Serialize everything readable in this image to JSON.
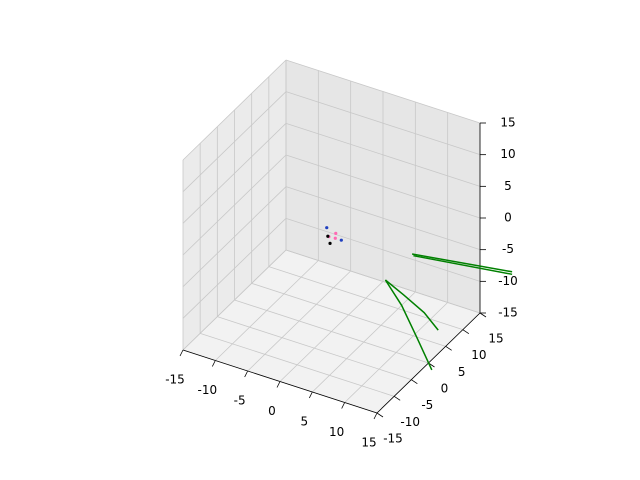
{
  "chart_data": {
    "type": "line3d",
    "xlim": [
      -15,
      15
    ],
    "ylim": [
      -15,
      15
    ],
    "zlim": [
      -15,
      15
    ],
    "xticks": [
      -15,
      -10,
      -5,
      0,
      5,
      10,
      15
    ],
    "yticks": [
      -15,
      -10,
      -5,
      0,
      5,
      10,
      15
    ],
    "zticks": [
      -15,
      -10,
      -5,
      0,
      5,
      10,
      15
    ],
    "grid": true,
    "series": [
      {
        "color": "#008000",
        "x": [
          0.1,
          4,
          8.5,
          12.2
        ],
        "y": [
          15.5,
          13.5,
          11,
          8.1
        ],
        "z": [
          -15,
          -15,
          -15,
          -15
        ]
      },
      {
        "color": "#008000",
        "x": [
          0.1,
          5,
          10.5,
          16.2
        ],
        "y": [
          15.5,
          11,
          5,
          -1.3
        ],
        "z": [
          -15,
          -15,
          -15,
          -15
        ]
      },
      {
        "color": "#008000",
        "x": [
          0.1,
          13.8
        ],
        "y": [
          23.3,
          26.6
        ],
        "z": [
          -15,
          -15
        ]
      },
      {
        "color": "#008000",
        "x": [
          0.3,
          13.8
        ],
        "y": [
          23.3,
          26.6
        ],
        "z": [
          -15.2,
          -15.4
        ]
      }
    ],
    "points": [
      {
        "color": "#ff69b4",
        "x": [
          0.5,
          -0.5,
          0.8
        ],
        "y": [
          0.3,
          0.2,
          -0.4
        ],
        "z": [
          0.5,
          -0.3,
          0.2
        ]
      },
      {
        "color": "#1f3fbf",
        "x": [
          -1,
          1.2
        ],
        "y": [
          0.5,
          0.6
        ],
        "z": [
          0.8,
          -0.5
        ]
      },
      {
        "color": "#000000",
        "x": [
          0.2,
          -0.3
        ],
        "y": [
          -0.8,
          -0.5
        ],
        "z": [
          -0.6,
          0.2
        ]
      }
    ]
  }
}
